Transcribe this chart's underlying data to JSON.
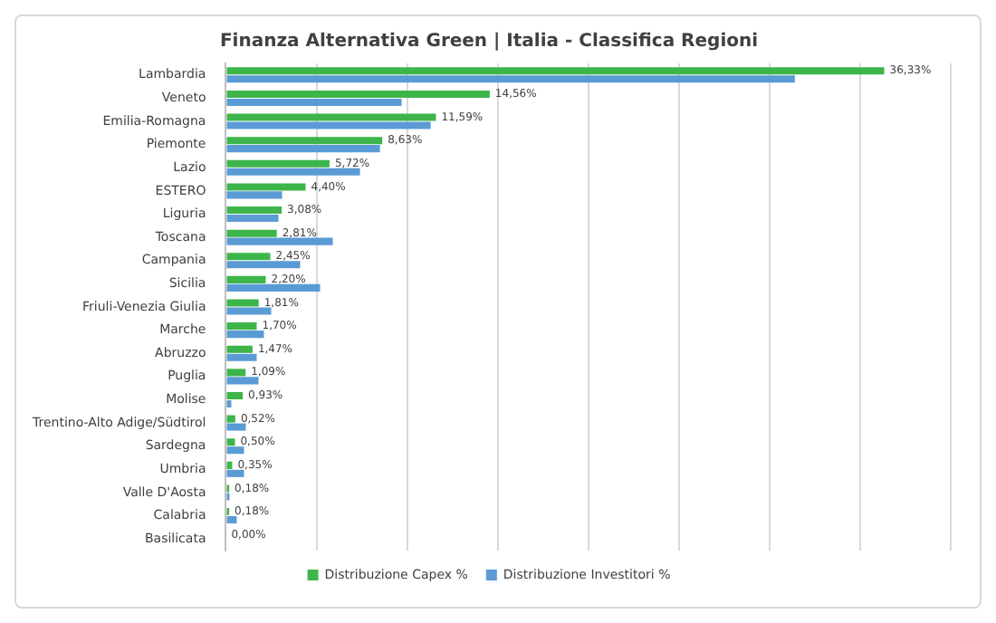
{
  "chart_data": {
    "type": "bar",
    "orientation": "horizontal",
    "title": "Finanza Alternativa Green | Italia - Classifica Regioni",
    "categories": [
      "Lambardia",
      "Veneto",
      "Emilia-Romagna",
      "Piemonte",
      "Lazio",
      "ESTERO",
      "Liguria",
      "Toscana",
      "Campania",
      "Sicilia",
      "Friuli-Venezia Giulia",
      "Marche",
      "Abruzzo",
      "Puglia",
      "Molise",
      "Trentino-Alto Adige/Südtirol",
      "Sardegna",
      "Umbria",
      "Valle D'Aosta",
      "Calabria",
      "Basilicata"
    ],
    "series": [
      {
        "name": "Distribuzione Capex %",
        "color": "#3db54a",
        "values": [
          36.33,
          14.56,
          11.59,
          8.63,
          5.72,
          4.4,
          3.08,
          2.81,
          2.45,
          2.2,
          1.81,
          1.7,
          1.47,
          1.09,
          0.93,
          0.52,
          0.5,
          0.35,
          0.18,
          0.18,
          0.0
        ],
        "value_labels": [
          "36,33%",
          "14,56%",
          "11,59%",
          "8,63%",
          "5,72%",
          "4,40%",
          "3,08%",
          "2,81%",
          "2,45%",
          "2,20%",
          "1,81%",
          "1,70%",
          "1,47%",
          "1,09%",
          "0,93%",
          "0,52%",
          "0,50%",
          "0,35%",
          "0,18%",
          "0,18%",
          "0,00%"
        ]
      },
      {
        "name": "Distribuzione Investitori %",
        "color": "#5b9bd5",
        "values": [
          31.4,
          9.7,
          11.3,
          8.5,
          7.4,
          3.1,
          2.9,
          5.9,
          4.1,
          5.2,
          2.5,
          2.1,
          1.7,
          1.8,
          0.3,
          1.1,
          1.0,
          1.0,
          0.2,
          0.6,
          0
        ]
      }
    ],
    "xlim": [
      0,
      40
    ],
    "xticks": [
      {
        "value": 0,
        "label": null
      },
      {
        "value": 5,
        "label": null
      },
      {
        "value": 10,
        "label": null
      },
      {
        "value": 15,
        "label": null
      },
      {
        "value": 20,
        "label": null
      },
      {
        "value": 25,
        "label": null
      },
      {
        "value": 30,
        "label": null
      },
      {
        "value": 35,
        "label": null
      },
      {
        "value": 40,
        "label": null
      }
    ],
    "grid": "x",
    "tick_labels": "y",
    "legend": "bottom"
  }
}
